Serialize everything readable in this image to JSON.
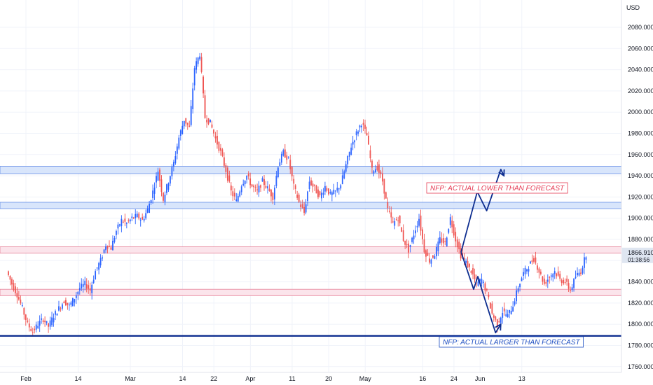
{
  "chart_data": {
    "type": "candlestick",
    "currency_label": "USD",
    "ylim": [
      1750,
      2100
    ],
    "y_ticks": [
      "2080.000",
      "2060.000",
      "2040.000",
      "2020.000",
      "2000.000",
      "1980.000",
      "1960.000",
      "1940.000",
      "1920.000",
      "1900.000",
      "1880.000",
      "1860.000",
      "1840.000",
      "1820.000",
      "1800.000",
      "1780.000",
      "1760.000"
    ],
    "y_tick_values": [
      2080,
      2060,
      2040,
      2020,
      2000,
      1980,
      1960,
      1940,
      1920,
      1900,
      1880,
      1860,
      1840,
      1820,
      1800,
      1780,
      1760
    ],
    "x_ticks": [
      {
        "label": "Feb",
        "index": 0
      },
      {
        "label": "14",
        "index": 10
      },
      {
        "label": "Mar",
        "index": 20
      },
      {
        "label": "14",
        "index": 30
      },
      {
        "label": "22",
        "index": 36
      },
      {
        "label": "Apr",
        "index": 43
      },
      {
        "label": "11",
        "index": 51
      },
      {
        "label": "20",
        "index": 58
      },
      {
        "label": "May",
        "index": 65
      },
      {
        "label": "16",
        "index": 76
      },
      {
        "label": "24",
        "index": 82
      },
      {
        "label": "Jun",
        "index": 87
      },
      {
        "label": "13",
        "index": 95
      }
    ],
    "last_price": "1866.910",
    "countdown": "01:38:56",
    "colors": {
      "up": "#2962ff",
      "down": "#ef5350",
      "blue_zone": "#d6e4fb",
      "blue_zone_border": "#5b86e5",
      "red_zone": "#fbe3ea",
      "red_zone_border": "#e57a93",
      "support_line": "#0d2d8f",
      "arrow": "#0d2d8f",
      "annotation_red": "#e53952",
      "annotation_blue": "#1e4fc2",
      "price_tag": "#dfe6f1"
    },
    "zones": [
      {
        "color": "blue",
        "y_low": 1942,
        "y_high": 1949
      },
      {
        "color": "blue",
        "y_low": 1909,
        "y_high": 1915
      },
      {
        "color": "red",
        "y_low": 1867,
        "y_high": 1873
      },
      {
        "color": "red",
        "y_low": 1827,
        "y_high": 1833
      }
    ],
    "support_level": 1789,
    "annotations": [
      {
        "text": "NFP: ACTUAL LOWER THAN FORECAST",
        "color": "red"
      },
      {
        "text": "NFP: ACTUAL LARGER THAN FORECAST",
        "color": "blue"
      }
    ],
    "up_path": [
      [
        87.4,
        1868
      ],
      [
        90.5,
        1925
      ],
      [
        92.3,
        1907
      ],
      [
        95.0,
        1946
      ],
      [
        95.6,
        1940
      ]
    ],
    "down_path": [
      [
        87.4,
        1868
      ],
      [
        89.8,
        1833
      ],
      [
        90.6,
        1845
      ],
      [
        91.6,
        1829
      ],
      [
        94.0,
        1792
      ],
      [
        95.0,
        1800
      ]
    ],
    "closes": [
      1850,
      1838,
      1828,
      1815,
      1800,
      1793,
      1800,
      1805,
      1798,
      1808,
      1815,
      1822,
      1817,
      1825,
      1834,
      1838,
      1832,
      1850,
      1860,
      1875,
      1872,
      1888,
      1898,
      1895,
      1900,
      1902,
      1898,
      1908,
      1925,
      1945,
      1918,
      1935,
      1952,
      1976,
      1993,
      1985,
      2042,
      2055,
      1995,
      1990,
      1975,
      1962,
      1945,
      1925,
      1916,
      1932,
      1940,
      1930,
      1925,
      1935,
      1928,
      1920,
      1950,
      1962,
      1955,
      1930,
      1915,
      1905,
      1935,
      1928,
      1920,
      1930,
      1922,
      1925,
      1932,
      1950,
      1968,
      1980,
      1990,
      1978,
      1945,
      1948,
      1935,
      1908,
      1895,
      1900,
      1880,
      1870,
      1885,
      1900,
      1870,
      1860,
      1866,
      1880,
      1876,
      1900,
      1880,
      1865,
      1858,
      1850,
      1838,
      1842,
      1830,
      1810,
      1800,
      1812,
      1808,
      1818,
      1835,
      1848,
      1855,
      1862,
      1850,
      1838,
      1845,
      1850,
      1842,
      1840,
      1832,
      1845,
      1850,
      1866
    ]
  },
  "scale": {
    "time_axis": "Feb 14 Mar 14 22 Apr 11 20 May 16 24 Jun 13",
    "price_axis": "USD 2080.000 – 1760.000"
  }
}
